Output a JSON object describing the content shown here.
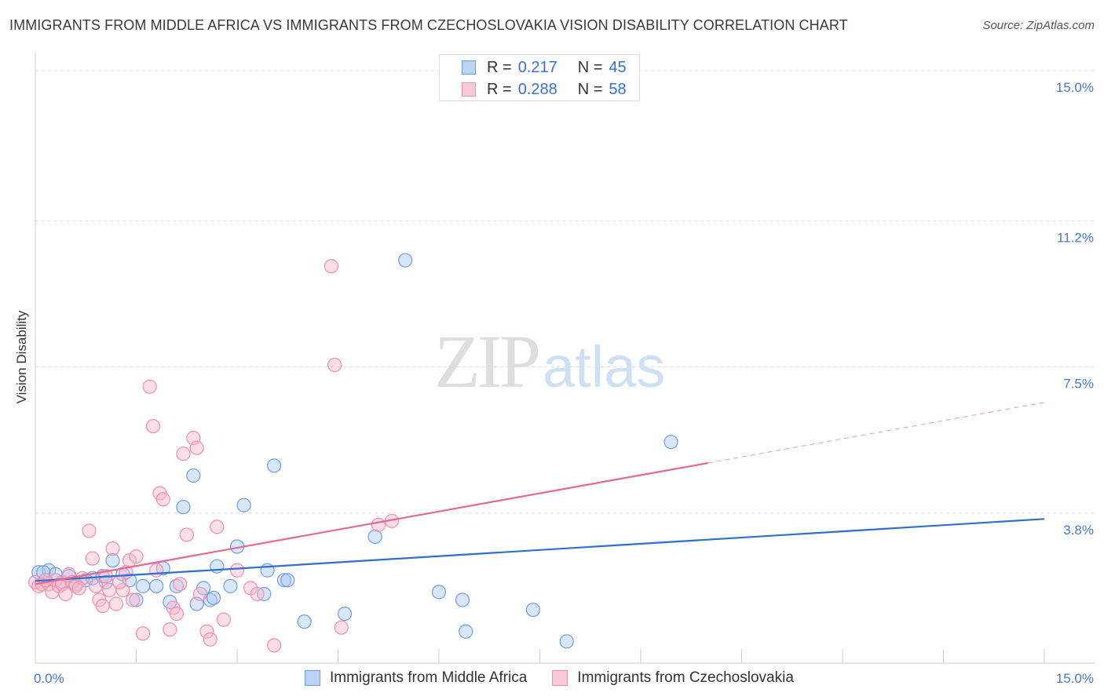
{
  "title": "IMMIGRANTS FROM MIDDLE AFRICA VS IMMIGRANTS FROM CZECHOSLOVAKIA VISION DISABILITY CORRELATION CHART",
  "source": "Source: ZipAtlas.com",
  "watermark": {
    "zip": "ZIP",
    "atlas": "atlas"
  },
  "colors": {
    "blue_fill": "#a9c7f0",
    "blue_stroke": "#6f9ee0",
    "blue_line": "#2e6fcf",
    "pink_fill": "#f6b6ca",
    "pink_stroke": "#ee8fae",
    "pink_line": "#e4688f",
    "grid": "#dddddd",
    "tick_text": "#4a78c8"
  },
  "legend": {
    "rows": [
      {
        "r_label": "R =",
        "r_value": "0.217",
        "n_label": "N =",
        "n_value": "45"
      },
      {
        "r_label": "R =",
        "r_value": "0.288",
        "n_label": "N =",
        "n_value": "58"
      }
    ]
  },
  "chart_data": {
    "type": "scatter",
    "title": "IMMIGRANTS FROM MIDDLE AFRICA VS IMMIGRANTS FROM CZECHOSLOVAKIA VISION DISABILITY CORRELATION CHART",
    "xlabel": "",
    "ylabel": "Vision Disability",
    "xlim": [
      0,
      15
    ],
    "ylim": [
      0,
      15.3
    ],
    "x_tick_labels": [
      {
        "value": 0,
        "label": "0.0%"
      },
      {
        "value": 15,
        "label": "15.0%"
      }
    ],
    "y_tick_labels": [
      {
        "value": 3.8,
        "label": "3.8%"
      },
      {
        "value": 7.5,
        "label": "7.5%"
      },
      {
        "value": 11.2,
        "label": "11.2%"
      },
      {
        "value": 15.0,
        "label": "15.0%"
      }
    ],
    "series": [
      {
        "name": "Immigrants from Middle Africa",
        "color": "blue",
        "r": 0.217,
        "n": 45,
        "trend": {
          "x0": 0,
          "y0": 2.08,
          "x1": 15,
          "y1": 3.65,
          "dash_from_x": null
        },
        "points": [
          [
            0.05,
            2.3
          ],
          [
            0.2,
            2.35
          ],
          [
            0.3,
            2.25
          ],
          [
            0.4,
            2.05
          ],
          [
            0.5,
            2.2
          ],
          [
            0.6,
            2.0
          ],
          [
            0.75,
            2.1
          ],
          [
            0.85,
            2.15
          ],
          [
            1.0,
            2.2
          ],
          [
            1.05,
            2.05
          ],
          [
            1.15,
            2.6
          ],
          [
            1.3,
            2.25
          ],
          [
            1.4,
            2.1
          ],
          [
            1.5,
            1.6
          ],
          [
            1.6,
            1.95
          ],
          [
            1.8,
            1.95
          ],
          [
            1.9,
            2.4
          ],
          [
            2.0,
            1.55
          ],
          [
            2.1,
            1.95
          ],
          [
            2.2,
            3.95
          ],
          [
            2.35,
            4.75
          ],
          [
            2.4,
            1.5
          ],
          [
            2.5,
            1.9
          ],
          [
            2.6,
            1.6
          ],
          [
            2.65,
            1.65
          ],
          [
            2.7,
            2.45
          ],
          [
            2.9,
            1.95
          ],
          [
            3.0,
            2.95
          ],
          [
            3.1,
            4.0
          ],
          [
            3.4,
            1.75
          ],
          [
            3.45,
            2.35
          ],
          [
            3.55,
            5.0
          ],
          [
            3.7,
            2.1
          ],
          [
            3.75,
            2.1
          ],
          [
            4.0,
            1.05
          ],
          [
            4.6,
            1.25
          ],
          [
            5.05,
            3.2
          ],
          [
            5.5,
            10.2
          ],
          [
            6.0,
            1.8
          ],
          [
            6.35,
            1.6
          ],
          [
            6.4,
            0.8
          ],
          [
            7.4,
            1.35
          ],
          [
            7.9,
            0.55
          ],
          [
            9.45,
            5.6
          ],
          [
            0.12,
            2.3
          ]
        ]
      },
      {
        "name": "Immigrants from Czechoslovakia",
        "color": "pink",
        "r": 0.288,
        "n": 58,
        "trend": {
          "x0": 0,
          "y0": 2.0,
          "x1": 15,
          "y1": 6.6,
          "dash_from_x": 10.0
        },
        "points": [
          [
            0.0,
            2.05
          ],
          [
            0.05,
            1.95
          ],
          [
            0.1,
            2.0
          ],
          [
            0.2,
            2.0
          ],
          [
            0.25,
            1.8
          ],
          [
            0.3,
            2.1
          ],
          [
            0.35,
            1.95
          ],
          [
            0.4,
            2.0
          ],
          [
            0.45,
            1.75
          ],
          [
            0.5,
            2.25
          ],
          [
            0.55,
            2.05
          ],
          [
            0.6,
            1.95
          ],
          [
            0.7,
            2.15
          ],
          [
            0.8,
            3.35
          ],
          [
            0.85,
            2.65
          ],
          [
            0.9,
            1.95
          ],
          [
            0.95,
            1.6
          ],
          [
            1.0,
            1.45
          ],
          [
            1.05,
            2.2
          ],
          [
            1.1,
            1.85
          ],
          [
            1.15,
            2.9
          ],
          [
            1.2,
            1.5
          ],
          [
            1.3,
            1.85
          ],
          [
            1.35,
            2.3
          ],
          [
            1.4,
            2.6
          ],
          [
            1.45,
            1.6
          ],
          [
            1.5,
            2.7
          ],
          [
            1.6,
            0.75
          ],
          [
            1.7,
            7.0
          ],
          [
            1.75,
            6.0
          ],
          [
            1.8,
            2.35
          ],
          [
            1.85,
            4.3
          ],
          [
            1.9,
            4.15
          ],
          [
            2.0,
            0.85
          ],
          [
            2.05,
            1.4
          ],
          [
            2.1,
            1.25
          ],
          [
            2.2,
            5.3
          ],
          [
            2.25,
            3.25
          ],
          [
            2.35,
            5.7
          ],
          [
            2.4,
            5.45
          ],
          [
            2.45,
            1.75
          ],
          [
            2.55,
            0.8
          ],
          [
            2.6,
            0.6
          ],
          [
            2.7,
            3.45
          ],
          [
            2.8,
            1.1
          ],
          [
            3.0,
            2.35
          ],
          [
            3.2,
            1.9
          ],
          [
            3.3,
            1.75
          ],
          [
            3.55,
            0.45
          ],
          [
            4.4,
            10.05
          ],
          [
            4.45,
            7.55
          ],
          [
            4.55,
            0.9
          ],
          [
            5.1,
            3.5
          ],
          [
            5.3,
            3.6
          ],
          [
            1.25,
            2.05
          ],
          [
            0.65,
            1.9
          ],
          [
            2.15,
            2.0
          ],
          [
            0.15,
            2.1
          ]
        ]
      }
    ]
  },
  "bottom_legend": [
    {
      "label": "Immigrants from Middle Africa"
    },
    {
      "label": "Immigrants from Czechoslovakia"
    }
  ]
}
